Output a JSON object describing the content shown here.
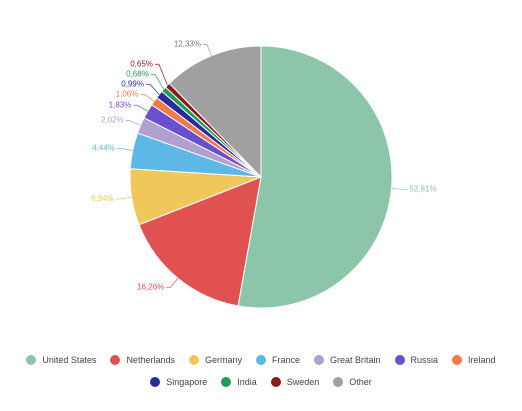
{
  "chart_data": {
    "type": "pie",
    "categories": [
      "United States",
      "Netherlands",
      "Germany",
      "France",
      "Great Britain",
      "Russia",
      "Ireland",
      "Singapore",
      "India",
      "Sweden",
      "Other"
    ],
    "values": [
      52.81,
      16.26,
      6.94,
      4.44,
      2.02,
      1.83,
      1.06,
      0.99,
      0.68,
      0.65,
      12.33
    ],
    "value_labels": [
      "52,81%",
      "16,26%",
      "6,94%",
      "4,44%",
      "2,02%",
      "1,83%",
      "1,06%",
      "0,99%",
      "0,68%",
      "0,65%",
      "12,33%"
    ],
    "colors": [
      "#8cc5a9",
      "#e05252",
      "#f0c75a",
      "#5db8e6",
      "#b09fd1",
      "#6a4fcf",
      "#f07a4a",
      "#2b2b9e",
      "#1e9e55",
      "#8b1a1a",
      "#a0a0a0"
    ],
    "legend": "bottom"
  }
}
